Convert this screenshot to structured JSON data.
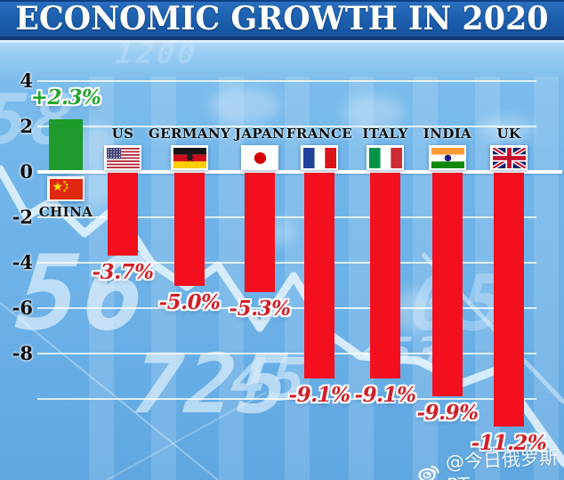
{
  "title": "ECONOMIC GROWTH IN 2020",
  "chart_data": {
    "type": "bar",
    "title": "ECONOMIC GROWTH IN 2020",
    "categories": [
      "CHINA",
      "US",
      "GERMANY",
      "JAPAN",
      "FRANCE",
      "ITALY",
      "INDIA",
      "UK"
    ],
    "values": [
      2.3,
      -3.7,
      -5.0,
      -5.3,
      -9.1,
      -9.1,
      -9.9,
      -11.2
    ],
    "value_labels": [
      "+2.3%",
      "-3.7%",
      "-5.0%",
      "-5.3%",
      "-9.1%",
      "-9.1%",
      "-9.9%",
      "-11.2%"
    ],
    "xlabel": "",
    "ylabel": "",
    "ylim": [
      -12,
      4
    ],
    "ytick_values": [
      4,
      2,
      0,
      -2,
      -4,
      -6,
      -8
    ],
    "ytick_labels": [
      "4",
      "2",
      "0",
      "-2",
      "-4",
      "-6",
      "-8"
    ],
    "extra_gridlines": [
      -10
    ],
    "grid": true,
    "legend": "none",
    "positive_color": "#1e9b2c",
    "negative_color": "#f2101f",
    "value_label_color_positive": "#26a62e",
    "value_label_color_negative": "#d0202a"
  },
  "watermark": {
    "icon": "weibo-icon",
    "handle": "@今日俄罗斯RT"
  },
  "background_digits": [
    "1200",
    "58",
    "56",
    "725",
    "45",
    "453",
    "05"
  ],
  "colors": {
    "title_background": "#1d61b0",
    "title_border": "#123a72",
    "title_text": "#ffffff",
    "chart_background": "#6bb0e7",
    "gridline": "#ffffff",
    "axis_text": "#0d0d0d"
  }
}
